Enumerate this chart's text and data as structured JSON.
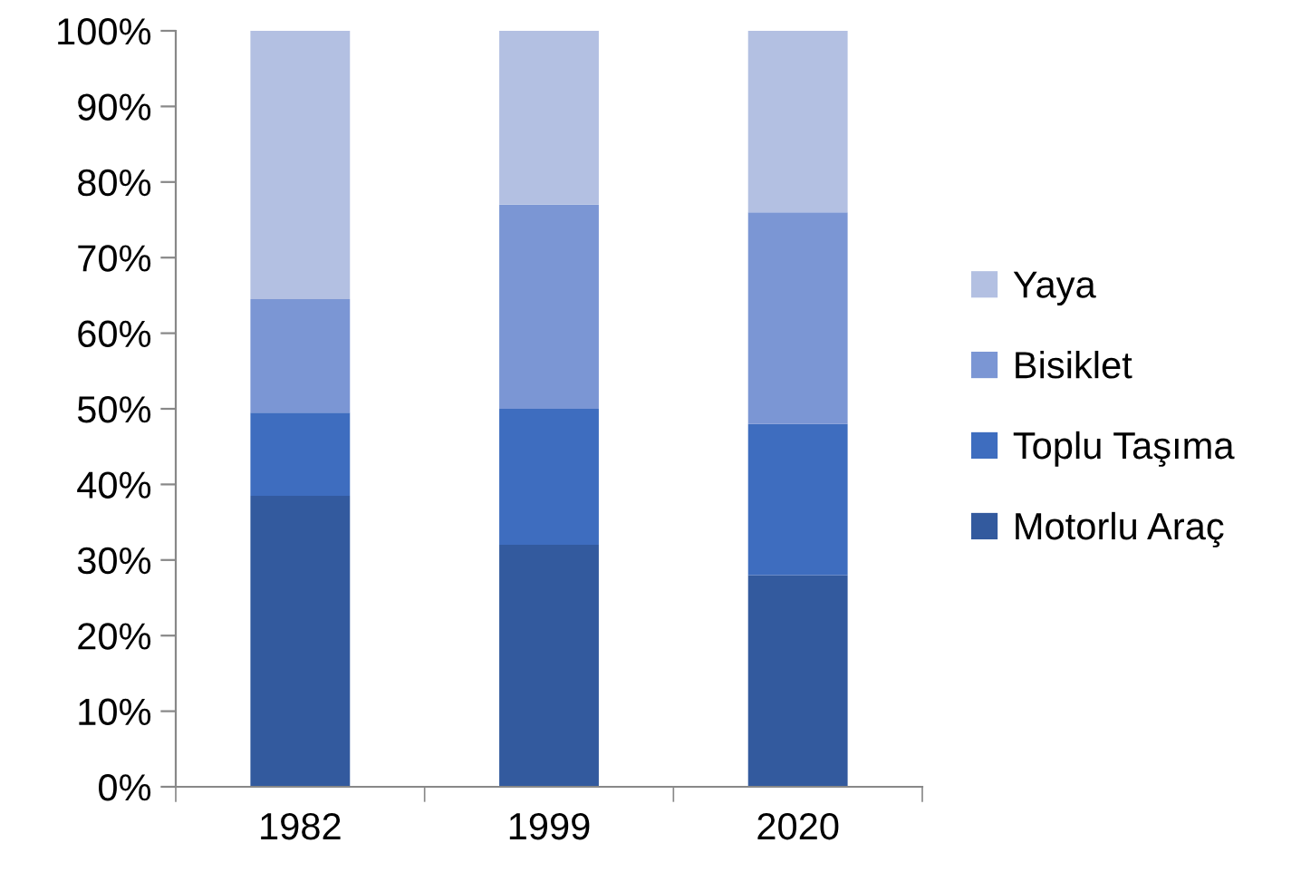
{
  "chart_data": {
    "type": "bar",
    "stacked": true,
    "categories": [
      "1982",
      "1999",
      "2020"
    ],
    "series": [
      {
        "name": "Motorlu Araç",
        "color": "#335a9e",
        "values": [
          38.5,
          32,
          28
        ]
      },
      {
        "name": "Toplu Taşıma",
        "color": "#3e6dbf",
        "values": [
          11,
          18,
          20
        ]
      },
      {
        "name": "Bisiklet",
        "color": "#7b96d4",
        "values": [
          15,
          27,
          28
        ]
      },
      {
        "name": "Yaya",
        "color": "#b3c0e2",
        "values": [
          35.5,
          23,
          24
        ]
      }
    ],
    "ylim": [
      0,
      100
    ],
    "yticks": [
      {
        "value": 0,
        "label": "0%"
      },
      {
        "value": 10,
        "label": "10%"
      },
      {
        "value": 20,
        "label": "20%"
      },
      {
        "value": 30,
        "label": "30%"
      },
      {
        "value": 40,
        "label": "40%"
      },
      {
        "value": 50,
        "label": "50%"
      },
      {
        "value": 60,
        "label": "60%"
      },
      {
        "value": 70,
        "label": "70%"
      },
      {
        "value": 80,
        "label": "80%"
      },
      {
        "value": 90,
        "label": "90%"
      },
      {
        "value": 100,
        "label": "100%"
      }
    ],
    "grid": false,
    "legend": "right"
  }
}
